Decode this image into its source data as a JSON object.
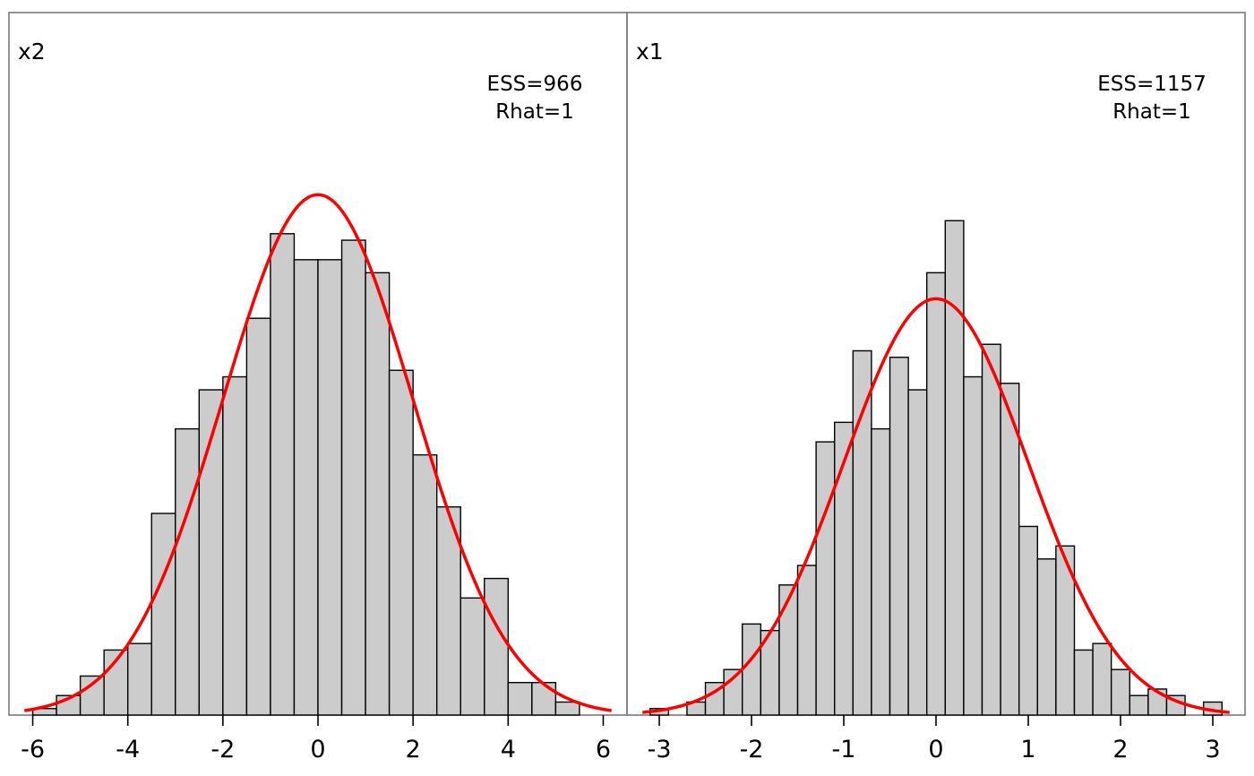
{
  "chart_data": [
    {
      "type": "bar",
      "panel": "x2",
      "stats": {
        "ess": "ESS=966",
        "rhat": "Rhat=1"
      },
      "xlim": [
        -6.5,
        6.5
      ],
      "ylim": [
        0,
        1.08
      ],
      "xticks": [
        "-6",
        "-4",
        "-2",
        "0",
        "2",
        "4",
        "6"
      ],
      "bin_width": 0.5,
      "bin_starts": [
        -6,
        -5.5,
        -5,
        -4.5,
        -4,
        -3.5,
        -3,
        -2.5,
        -2,
        -1.5,
        -1,
        -0.5,
        0,
        0.5,
        1,
        1.5,
        2,
        2.5,
        3,
        3.5,
        4,
        4.5,
        5
      ],
      "values": [
        0.01,
        0.03,
        0.06,
        0.1,
        0.11,
        0.31,
        0.44,
        0.5,
        0.52,
        0.61,
        0.74,
        0.7,
        0.7,
        0.73,
        0.68,
        0.53,
        0.4,
        0.32,
        0.18,
        0.21,
        0.05,
        0.05,
        0.02
      ],
      "normal_curve": {
        "mean": 0,
        "sd": 2,
        "peak": 0.8,
        "color": "#ff0000"
      },
      "bar_fill": "#cccccc"
    },
    {
      "type": "bar",
      "panel": "x1",
      "stats": {
        "ess": "ESS=1157",
        "rhat": "Rhat=1"
      },
      "xlim": [
        -3.35,
        3.35
      ],
      "ylim": [
        0,
        1.08
      ],
      "xticks": [
        "-3",
        "-2",
        "-1",
        "0",
        "1",
        "2",
        "3"
      ],
      "bin_width": 0.2,
      "bin_starts": [
        -3.1,
        -2.9,
        -2.7,
        -2.5,
        -2.3,
        -2.1,
        -1.9,
        -1.7,
        -1.5,
        -1.3,
        -1.1,
        -0.9,
        -0.7,
        -0.5,
        -0.3,
        -0.1,
        0.1,
        0.3,
        0.5,
        0.7,
        0.9,
        1.1,
        1.3,
        1.5,
        1.7,
        1.9,
        2.1,
        2.3,
        2.5,
        2.7,
        2.9,
        3.1
      ],
      "values": [
        0.01,
        0.0,
        0.02,
        0.05,
        0.07,
        0.14,
        0.13,
        0.2,
        0.23,
        0.42,
        0.45,
        0.56,
        0.44,
        0.55,
        0.5,
        0.68,
        0.76,
        0.52,
        0.57,
        0.51,
        0.29,
        0.24,
        0.26,
        0.1,
        0.11,
        0.07,
        0.03,
        0.04,
        0.03,
        0.0,
        0.02,
        0.0
      ],
      "normal_curve": {
        "mean": 0,
        "sd": 1,
        "peak": 0.64,
        "color": "#ff0000"
      },
      "bar_fill": "#cccccc"
    }
  ]
}
